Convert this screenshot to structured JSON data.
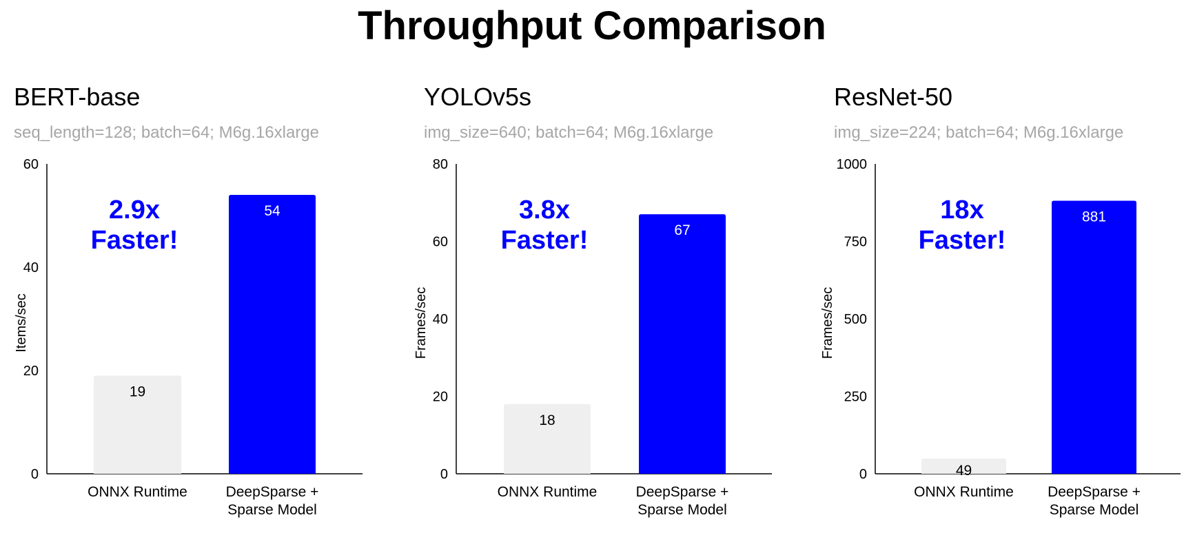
{
  "main_title": "Throughput Comparison",
  "colors": {
    "baseline": "#efefef",
    "sparse": "#0000ff",
    "callout": "#0000ff",
    "subtitle": "#a6a6a6"
  },
  "chart_data": [
    {
      "type": "bar",
      "title": "BERT-base",
      "subtitle": "seq_length=128; batch=64; M6g.16xlarge",
      "ylabel": "Items/sec",
      "ylim": [
        0,
        60
      ],
      "yticks": [
        "0",
        "20",
        "40",
        "60"
      ],
      "categories": [
        "ONNX Runtime",
        "DeepSparse +\nSparse Model"
      ],
      "values": [
        19,
        54
      ],
      "value_labels": [
        "19",
        "54"
      ],
      "callout": [
        "2.9x",
        "Faster!"
      ],
      "grid": false
    },
    {
      "type": "bar",
      "title": "YOLOv5s",
      "subtitle": "img_size=640; batch=64; M6g.16xlarge",
      "ylabel": "Frames/sec",
      "ylim": [
        0,
        80
      ],
      "yticks": [
        "0",
        "20",
        "40",
        "60",
        "80"
      ],
      "categories": [
        "ONNX Runtime",
        "DeepSparse +\nSparse Model"
      ],
      "values": [
        18,
        67
      ],
      "value_labels": [
        "18",
        "67"
      ],
      "callout": [
        "3.8x",
        "Faster!"
      ],
      "grid": false
    },
    {
      "type": "bar",
      "title": "ResNet-50",
      "subtitle": "img_size=224; batch=64; M6g.16xlarge",
      "ylabel": "Frames/sec",
      "ylim": [
        0,
        1000
      ],
      "yticks": [
        "0",
        "250",
        "500",
        "750",
        "1000"
      ],
      "categories": [
        "ONNX Runtime",
        "DeepSparse +\nSparse Model"
      ],
      "values": [
        49,
        881
      ],
      "value_labels": [
        "49",
        "881"
      ],
      "callout": [
        "18x",
        "Faster!"
      ],
      "grid": false
    }
  ]
}
